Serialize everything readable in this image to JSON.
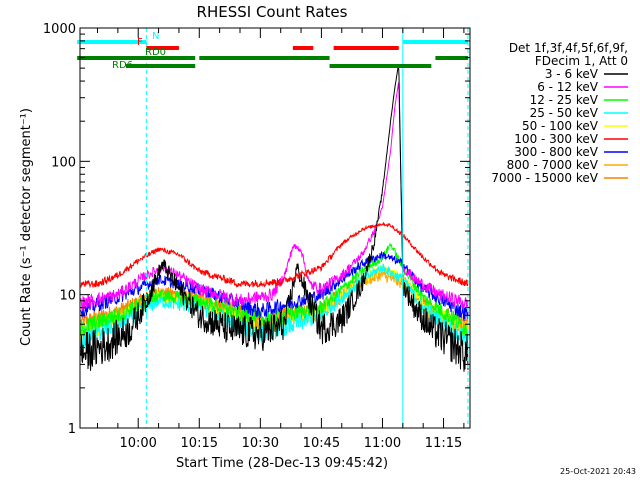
{
  "chart_data": {
    "type": "line",
    "title": "RHESSI Count Rates",
    "xlabel": "Start Time (28-Dec-13 09:45:42)",
    "ylabel": "Count Rate (s⁻¹ detector segment⁻¹)",
    "y_scale": "log",
    "ylim": [
      1,
      1000
    ],
    "xlim": [
      "09:45:42",
      "11:21:30"
    ],
    "x_ticks": [
      "10:00",
      "10:15",
      "10:30",
      "10:45",
      "11:00",
      "11:15"
    ],
    "y_ticks": [
      "1",
      "10",
      "100",
      "1000"
    ],
    "timestamp": "25-Oct-2021 20:43",
    "legend_header": [
      "Det 1f,3f,4f,5f,6f,9f,",
      "FDecim 1, Att 0"
    ],
    "legend_placement": "right",
    "series": [
      {
        "name": "3 - 6 keV",
        "color": "#000000",
        "x": [
          "09:45",
          "09:52",
          "09:58",
          "10:02",
          "10:06",
          "10:10",
          "10:15",
          "10:22",
          "10:30",
          "10:36",
          "10:39",
          "10:42",
          "10:45",
          "10:50",
          "10:55",
          "10:58",
          "11:00",
          "11:02",
          "11:03",
          "11:04",
          "11:05",
          "11:08",
          "11:12",
          "11:16",
          "11:21"
        ],
        "values": [
          3.5,
          4.2,
          5.5,
          9.0,
          17,
          11,
          7.0,
          5.5,
          5.0,
          6.0,
          16,
          9.0,
          5.5,
          6.5,
          12,
          25,
          60,
          200,
          350,
          550,
          12,
          8.0,
          5.5,
          4.5,
          3.5
        ]
      },
      {
        "name": "6 - 12 keV",
        "color": "#ff00ff",
        "x": [
          "09:45",
          "09:55",
          "10:02",
          "10:06",
          "10:10",
          "10:15",
          "10:25",
          "10:33",
          "10:36",
          "10:38",
          "10:40",
          "10:42",
          "10:45",
          "10:50",
          "10:55",
          "10:58",
          "11:00",
          "11:02",
          "11:03",
          "11:04",
          "11:05",
          "11:08",
          "11:14",
          "11:21"
        ],
        "values": [
          8.5,
          10,
          14,
          16,
          14,
          11,
          9.0,
          10,
          14,
          23,
          22,
          12,
          11,
          14,
          20,
          30,
          45,
          120,
          250,
          400,
          16,
          13,
          10,
          8.5
        ]
      },
      {
        "name": "12 - 25 keV",
        "color": "#00ff00",
        "x": [
          "09:45",
          "09:55",
          "10:05",
          "10:15",
          "10:30",
          "10:45",
          "10:55",
          "11:00",
          "11:02",
          "11:05",
          "11:10",
          "11:21"
        ],
        "values": [
          5.5,
          7.0,
          10,
          9.0,
          6.5,
          8.0,
          15,
          19,
          24,
          16,
          9.5,
          5.5
        ]
      },
      {
        "name": "25 - 50 keV",
        "color": "#00ffff",
        "x": [
          "09:45",
          "09:55",
          "10:05",
          "10:15",
          "10:30",
          "10:45",
          "10:55",
          "11:00",
          "11:05",
          "11:10",
          "11:21"
        ],
        "values": [
          4.5,
          6.0,
          9.0,
          8.0,
          5.0,
          7.0,
          13,
          16,
          13,
          8.0,
          4.5
        ]
      },
      {
        "name": "50 - 100 keV",
        "color": "#ffff00",
        "x": [
          "09:45",
          "09:55",
          "10:05",
          "10:15",
          "10:30",
          "10:45",
          "10:55",
          "11:00",
          "11:05",
          "11:10",
          "11:21"
        ],
        "values": [
          5.0,
          6.5,
          9.5,
          8.5,
          5.5,
          7.5,
          13,
          16,
          13,
          8.5,
          5.0
        ]
      },
      {
        "name": "100 - 300 keV",
        "color": "#ff0000",
        "x": [
          "09:45",
          "09:50",
          "09:55",
          "10:00",
          "10:05",
          "10:10",
          "10:15",
          "10:25",
          "10:35",
          "10:45",
          "10:50",
          "10:55",
          "11:00",
          "11:02",
          "11:05",
          "11:10",
          "11:15",
          "11:21"
        ],
        "values": [
          12,
          12,
          14,
          18,
          22,
          20,
          15,
          12,
          12.5,
          16,
          24,
          31,
          34,
          33,
          28,
          19,
          14,
          12
        ]
      },
      {
        "name": "300 - 800 keV",
        "color": "#0000ff",
        "x": [
          "09:45",
          "09:55",
          "10:05",
          "10:15",
          "10:30",
          "10:45",
          "10:55",
          "11:00",
          "11:05",
          "11:10",
          "11:21"
        ],
        "values": [
          7.5,
          9.5,
          13,
          11,
          7.5,
          10,
          17,
          20,
          17,
          11,
          7.0
        ]
      },
      {
        "name": "800 - 7000 keV",
        "color": "#ffaa00",
        "x": [
          "09:45",
          "09:55",
          "10:05",
          "10:15",
          "10:30",
          "10:45",
          "10:55",
          "11:00",
          "11:05",
          "11:10",
          "11:21"
        ],
        "values": [
          5.5,
          7.0,
          10,
          9.0,
          6.0,
          7.5,
          12.5,
          14,
          12,
          8.0,
          5.5
        ]
      },
      {
        "name": "7000 - 15000 keV",
        "color": "#ff8000",
        "x": [
          "09:45",
          "09:55",
          "10:05",
          "10:15",
          "10:30",
          "10:45",
          "10:55",
          "11:00",
          "11:05",
          "11:10",
          "11:21"
        ],
        "values": [
          6.0,
          7.5,
          10.5,
          9.5,
          6.5,
          8.0,
          13,
          15,
          13,
          8.5,
          6.0
        ]
      }
    ],
    "flag_bars": [
      {
        "label": "N",
        "color": "#00ffff",
        "segments": [
          [
            "09:45",
            "10:02"
          ],
          [
            "11:05",
            "11:21"
          ]
        ]
      },
      {
        "label": "F",
        "color": "#ff0000",
        "segments": [
          [
            "10:02",
            "10:10"
          ],
          [
            "10:38",
            "10:43"
          ],
          [
            "10:48",
            "11:04"
          ]
        ]
      },
      {
        "label": "RD0",
        "color": "#008000",
        "segments": [
          [
            "09:45",
            "10:14"
          ],
          [
            "10:15",
            "10:47"
          ],
          [
            "11:13",
            "11:21"
          ]
        ]
      },
      {
        "label": "RD6",
        "color": "#008000",
        "segments": [
          [
            "09:57",
            "10:14"
          ],
          [
            "10:47",
            "11:12"
          ]
        ]
      }
    ],
    "vertical_markers": [
      {
        "x": "09:45:42",
        "color": "#00ffff",
        "style": "solid"
      },
      {
        "x": "10:02",
        "color": "#00ffff",
        "style": "dashed"
      },
      {
        "x": "11:05",
        "color": "#00ffff",
        "style": "solid"
      },
      {
        "x": "11:21",
        "color": "#00ffff",
        "style": "dashed"
      }
    ]
  }
}
